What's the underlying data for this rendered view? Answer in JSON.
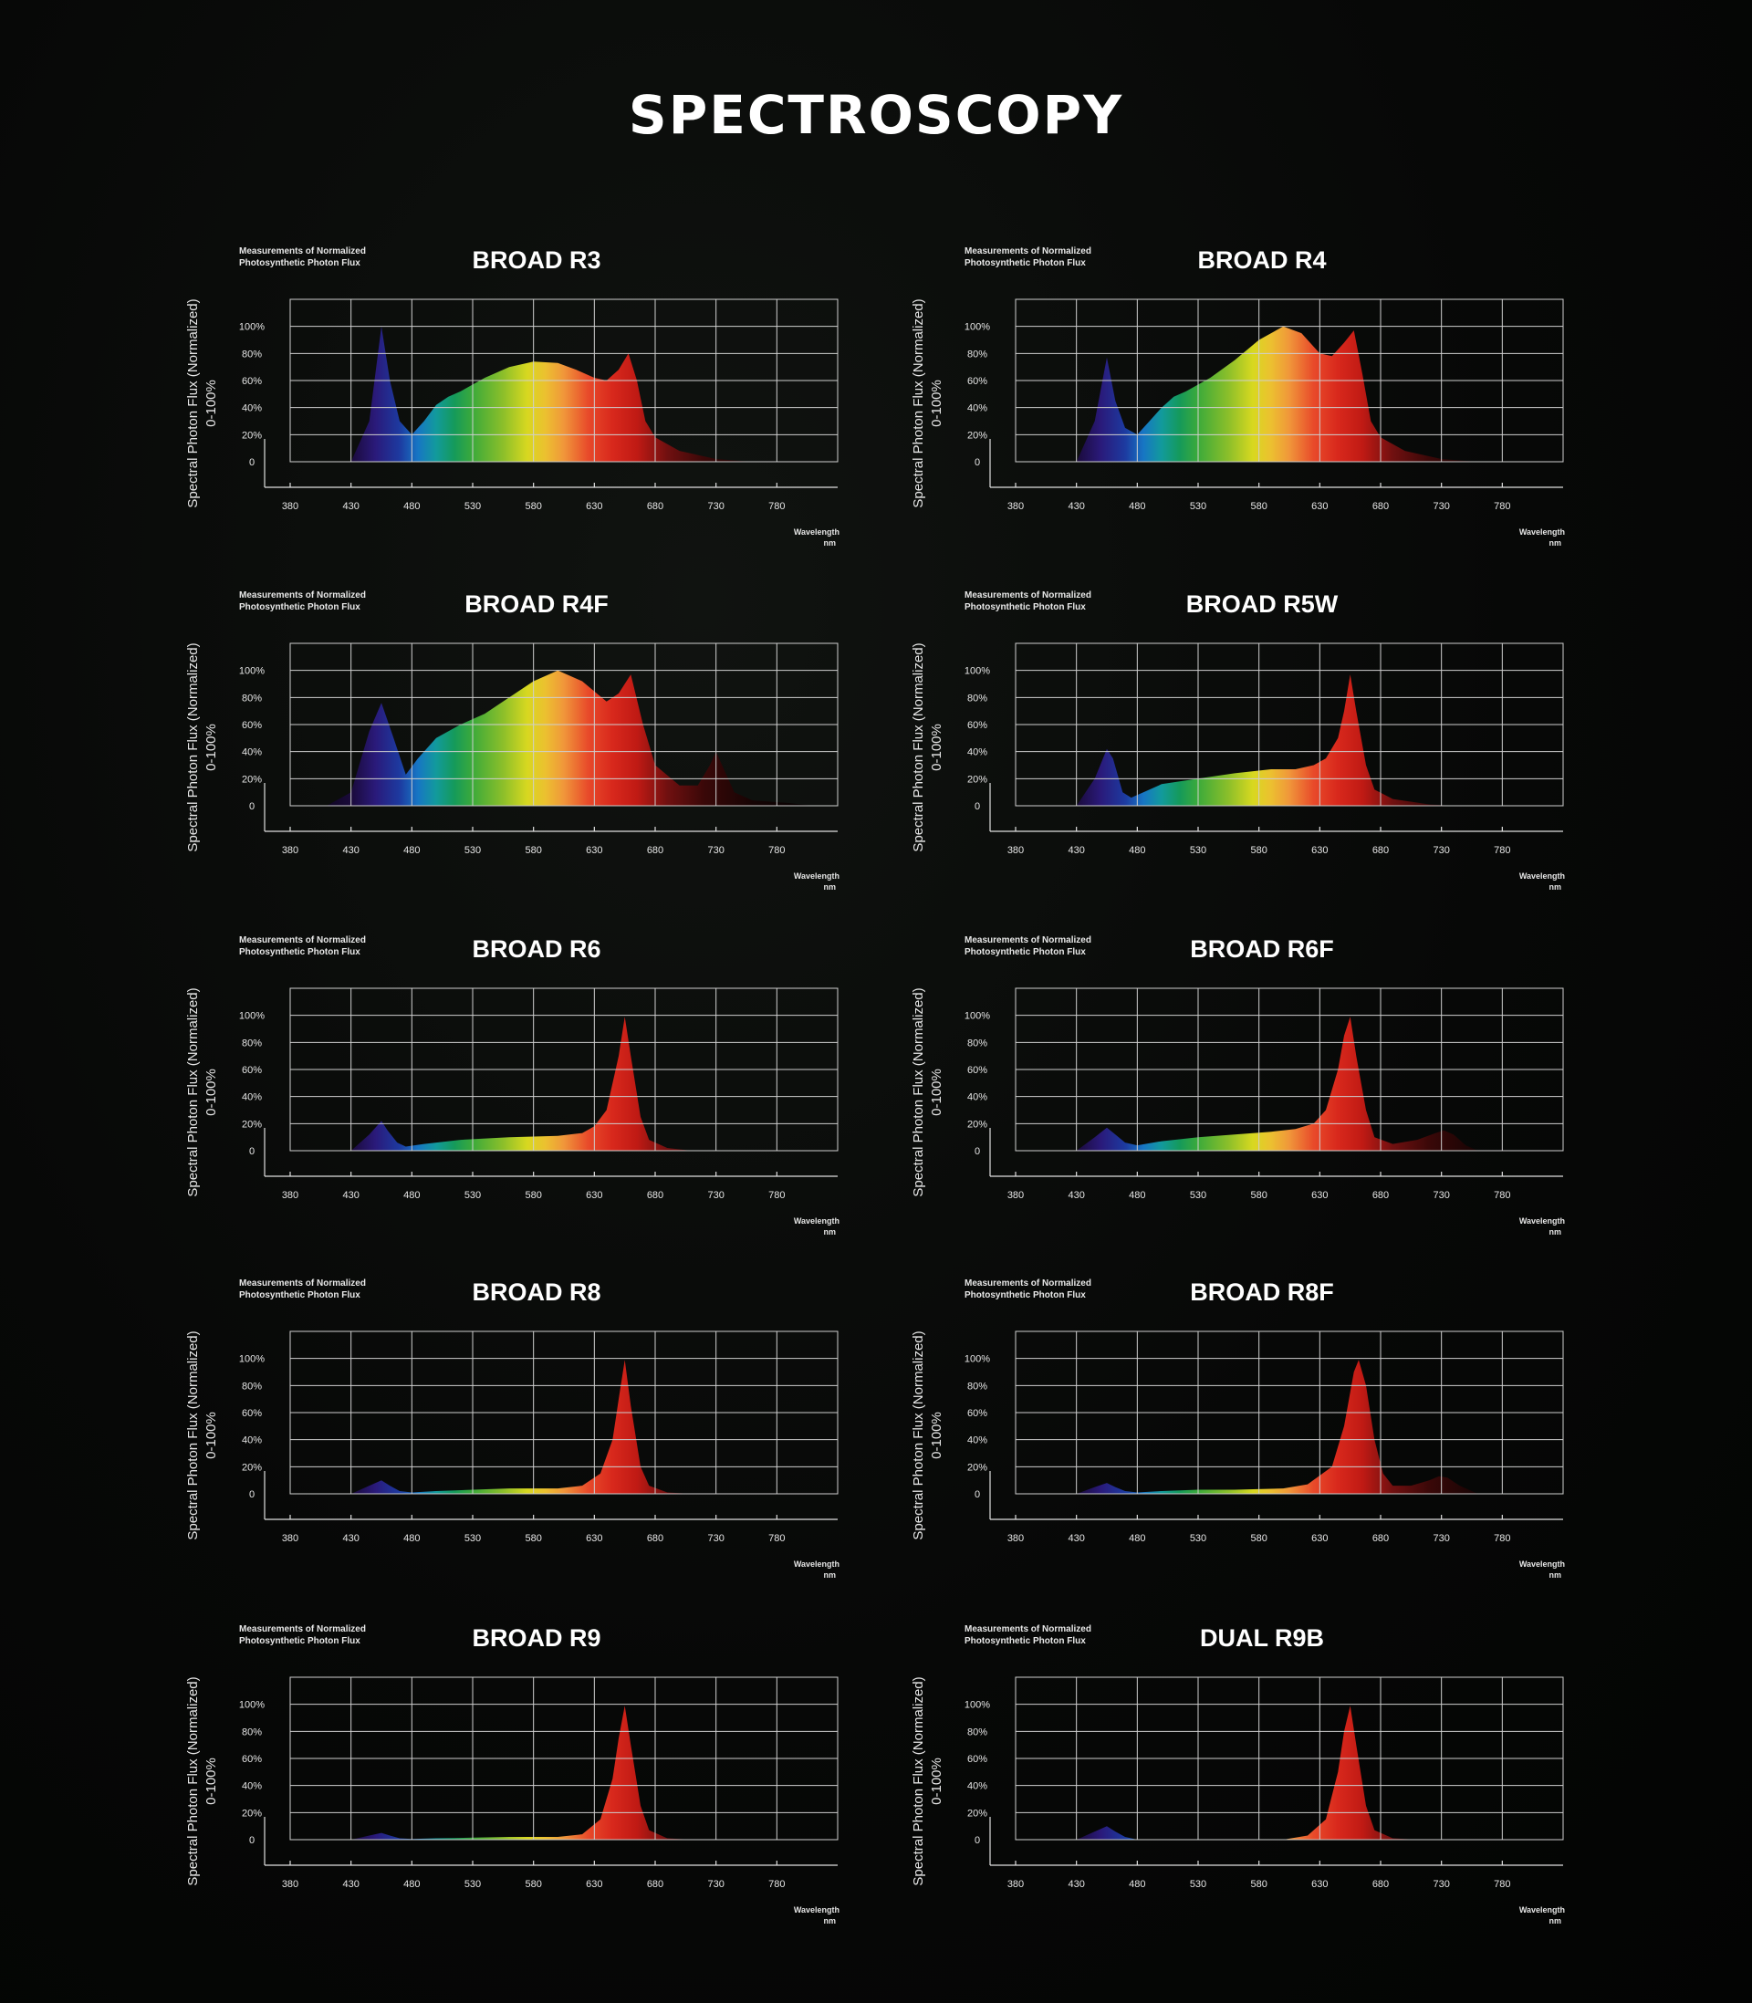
{
  "title": "SPECTROSCOPY",
  "axis_text": {
    "note": [
      "Measurements of Normalized",
      "Photosynthetic Photon Flux"
    ],
    "ylabel": [
      "Spectral Photon Flux (Normalized)",
      "0-100%"
    ],
    "xlabel": [
      "Wavelength",
      "nm"
    ]
  },
  "colors": {
    "background": "#050605",
    "grid": "#cfcfcf",
    "text": "#ffffff"
  },
  "chart_data": [
    {
      "type": "area",
      "title": "BROAD R3",
      "x_ticks": [
        380,
        430,
        480,
        530,
        580,
        630,
        680,
        730,
        780
      ],
      "y_ticks": [
        "0",
        "20%",
        "40%",
        "60%",
        "80%",
        "100%"
      ],
      "xlim": [
        380,
        830
      ],
      "ylim": [
        0,
        1.2
      ],
      "series": [
        {
          "x": [
            430,
            445,
            455,
            462,
            470,
            480,
            490,
            500,
            510,
            520,
            540,
            560,
            580,
            600,
            615,
            630,
            640,
            650,
            658,
            665,
            672,
            680,
            700,
            730,
            760
          ],
          "y": [
            0.0,
            0.3,
            1.0,
            0.6,
            0.3,
            0.2,
            0.3,
            0.42,
            0.48,
            0.52,
            0.62,
            0.7,
            0.74,
            0.73,
            0.68,
            0.62,
            0.6,
            0.68,
            0.8,
            0.6,
            0.3,
            0.18,
            0.08,
            0.02,
            0.0
          ]
        }
      ]
    },
    {
      "type": "area",
      "title": "BROAD R4",
      "x_ticks": [
        380,
        430,
        480,
        530,
        580,
        630,
        680,
        730,
        780
      ],
      "y_ticks": [
        "0",
        "20%",
        "40%",
        "60%",
        "80%",
        "100%"
      ],
      "xlim": [
        380,
        830
      ],
      "ylim": [
        0,
        1.2
      ],
      "series": [
        {
          "x": [
            430,
            445,
            455,
            462,
            470,
            480,
            490,
            500,
            510,
            520,
            540,
            560,
            580,
            600,
            615,
            630,
            640,
            650,
            658,
            665,
            672,
            680,
            700,
            730,
            760
          ],
          "y": [
            0.0,
            0.3,
            0.77,
            0.45,
            0.25,
            0.2,
            0.3,
            0.4,
            0.48,
            0.52,
            0.62,
            0.75,
            0.9,
            1.0,
            0.95,
            0.8,
            0.78,
            0.88,
            0.97,
            0.65,
            0.3,
            0.18,
            0.08,
            0.02,
            0.0
          ]
        }
      ]
    },
    {
      "type": "area",
      "title": "BROAD R4F",
      "x_ticks": [
        380,
        430,
        480,
        530,
        580,
        630,
        680,
        730,
        780
      ],
      "y_ticks": [
        "0",
        "20%",
        "40%",
        "60%",
        "80%",
        "100%"
      ],
      "xlim": [
        380,
        830
      ],
      "ylim": [
        0,
        1.2
      ],
      "series": [
        {
          "x": [
            410,
            430,
            445,
            455,
            465,
            475,
            485,
            500,
            520,
            540,
            560,
            580,
            600,
            620,
            640,
            650,
            660,
            670,
            680,
            700,
            715,
            725,
            730,
            735,
            745,
            760,
            790,
            810
          ],
          "y": [
            0.0,
            0.1,
            0.55,
            0.76,
            0.5,
            0.23,
            0.35,
            0.5,
            0.6,
            0.68,
            0.8,
            0.92,
            1.0,
            0.92,
            0.77,
            0.83,
            0.97,
            0.6,
            0.3,
            0.15,
            0.15,
            0.3,
            0.4,
            0.3,
            0.1,
            0.04,
            0.02,
            0.0
          ]
        }
      ]
    },
    {
      "type": "area",
      "title": "BROAD R5W",
      "x_ticks": [
        380,
        430,
        480,
        530,
        580,
        630,
        680,
        730,
        780
      ],
      "y_ticks": [
        "0",
        "20%",
        "40%",
        "60%",
        "80%",
        "100%"
      ],
      "xlim": [
        380,
        830
      ],
      "ylim": [
        0,
        1.2
      ],
      "series": [
        {
          "x": [
            430,
            445,
            455,
            460,
            468,
            475,
            485,
            500,
            530,
            560,
            590,
            610,
            625,
            635,
            645,
            650,
            655,
            660,
            668,
            675,
            690,
            720,
            740
          ],
          "y": [
            0.0,
            0.2,
            0.42,
            0.35,
            0.1,
            0.06,
            0.1,
            0.16,
            0.2,
            0.24,
            0.27,
            0.27,
            0.3,
            0.35,
            0.5,
            0.7,
            0.97,
            0.7,
            0.3,
            0.12,
            0.05,
            0.01,
            0.0
          ]
        }
      ]
    },
    {
      "type": "area",
      "title": "BROAD R6",
      "x_ticks": [
        380,
        430,
        480,
        530,
        580,
        630,
        680,
        730,
        780
      ],
      "y_ticks": [
        "0",
        "20%",
        "40%",
        "60%",
        "80%",
        "100%"
      ],
      "xlim": [
        380,
        830
      ],
      "ylim": [
        0,
        1.2
      ],
      "series": [
        {
          "x": [
            430,
            445,
            455,
            460,
            468,
            475,
            490,
            520,
            560,
            600,
            620,
            630,
            640,
            650,
            655,
            660,
            668,
            675,
            690,
            710
          ],
          "y": [
            0.0,
            0.12,
            0.22,
            0.15,
            0.06,
            0.03,
            0.05,
            0.08,
            0.1,
            0.11,
            0.13,
            0.18,
            0.3,
            0.7,
            0.99,
            0.7,
            0.25,
            0.08,
            0.02,
            0.0
          ]
        }
      ]
    },
    {
      "type": "area",
      "title": "BROAD R6F",
      "x_ticks": [
        380,
        430,
        480,
        530,
        580,
        630,
        680,
        730,
        780
      ],
      "y_ticks": [
        "0",
        "20%",
        "40%",
        "60%",
        "80%",
        "100%"
      ],
      "xlim": [
        380,
        830
      ],
      "ylim": [
        0,
        1.2
      ],
      "series": [
        {
          "x": [
            430,
            445,
            455,
            462,
            470,
            480,
            500,
            530,
            560,
            590,
            610,
            625,
            635,
            645,
            650,
            655,
            660,
            668,
            675,
            690,
            710,
            725,
            732,
            740,
            750,
            760
          ],
          "y": [
            0.0,
            0.1,
            0.17,
            0.12,
            0.06,
            0.04,
            0.07,
            0.1,
            0.12,
            0.14,
            0.16,
            0.2,
            0.3,
            0.6,
            0.85,
            0.99,
            0.7,
            0.3,
            0.1,
            0.05,
            0.08,
            0.13,
            0.15,
            0.12,
            0.04,
            0.0
          ]
        }
      ]
    },
    {
      "type": "area",
      "title": "BROAD R8",
      "x_ticks": [
        380,
        430,
        480,
        530,
        580,
        630,
        680,
        730,
        780
      ],
      "y_ticks": [
        "0",
        "20%",
        "40%",
        "60%",
        "80%",
        "100%"
      ],
      "xlim": [
        380,
        830
      ],
      "ylim": [
        0,
        1.2
      ],
      "series": [
        {
          "x": [
            430,
            445,
            455,
            462,
            470,
            480,
            500,
            530,
            560,
            600,
            620,
            635,
            645,
            650,
            655,
            660,
            668,
            675,
            690,
            710
          ],
          "y": [
            0.0,
            0.06,
            0.1,
            0.06,
            0.02,
            0.01,
            0.02,
            0.03,
            0.04,
            0.04,
            0.06,
            0.15,
            0.4,
            0.7,
            0.99,
            0.65,
            0.2,
            0.06,
            0.01,
            0.0
          ]
        }
      ]
    },
    {
      "type": "area",
      "title": "BROAD R8F",
      "x_ticks": [
        380,
        430,
        480,
        530,
        580,
        630,
        680,
        730,
        780
      ],
      "y_ticks": [
        "0",
        "20%",
        "40%",
        "60%",
        "80%",
        "100%"
      ],
      "xlim": [
        380,
        830
      ],
      "ylim": [
        0,
        1.2
      ],
      "series": [
        {
          "x": [
            430,
            445,
            455,
            462,
            470,
            480,
            500,
            530,
            560,
            600,
            620,
            640,
            650,
            658,
            662,
            668,
            675,
            682,
            690,
            705,
            720,
            728,
            735,
            745,
            760
          ],
          "y": [
            0.0,
            0.05,
            0.08,
            0.05,
            0.02,
            0.01,
            0.02,
            0.03,
            0.03,
            0.04,
            0.07,
            0.2,
            0.5,
            0.9,
            0.99,
            0.8,
            0.4,
            0.15,
            0.06,
            0.06,
            0.1,
            0.13,
            0.12,
            0.06,
            0.0
          ]
        }
      ]
    },
    {
      "type": "area",
      "title": "BROAD R9",
      "x_ticks": [
        380,
        430,
        480,
        530,
        580,
        630,
        680,
        730,
        780
      ],
      "y_ticks": [
        "0",
        "20%",
        "40%",
        "60%",
        "80%",
        "100%"
      ],
      "xlim": [
        380,
        830
      ],
      "ylim": [
        0,
        1.2
      ],
      "series": [
        {
          "x": [
            430,
            445,
            455,
            462,
            470,
            480,
            500,
            530,
            560,
            600,
            620,
            635,
            645,
            650,
            655,
            660,
            668,
            675,
            690,
            710
          ],
          "y": [
            0.0,
            0.03,
            0.05,
            0.03,
            0.01,
            0.005,
            0.01,
            0.015,
            0.02,
            0.02,
            0.04,
            0.15,
            0.45,
            0.75,
            0.99,
            0.7,
            0.25,
            0.07,
            0.01,
            0.0
          ]
        }
      ]
    },
    {
      "type": "area",
      "title": "DUAL R9B",
      "x_ticks": [
        380,
        430,
        480,
        530,
        580,
        630,
        680,
        730,
        780
      ],
      "y_ticks": [
        "0",
        "20%",
        "40%",
        "60%",
        "80%",
        "100%"
      ],
      "xlim": [
        380,
        830
      ],
      "ylim": [
        0,
        1.2
      ],
      "series": [
        {
          "x": [
            430,
            445,
            455,
            462,
            470,
            480,
            600,
            620,
            635,
            645,
            650,
            655,
            660,
            668,
            675,
            690,
            710
          ],
          "y": [
            0.0,
            0.06,
            0.1,
            0.06,
            0.02,
            0.0,
            0.0,
            0.03,
            0.15,
            0.5,
            0.8,
            0.99,
            0.7,
            0.25,
            0.07,
            0.01,
            0.0
          ]
        }
      ]
    }
  ]
}
